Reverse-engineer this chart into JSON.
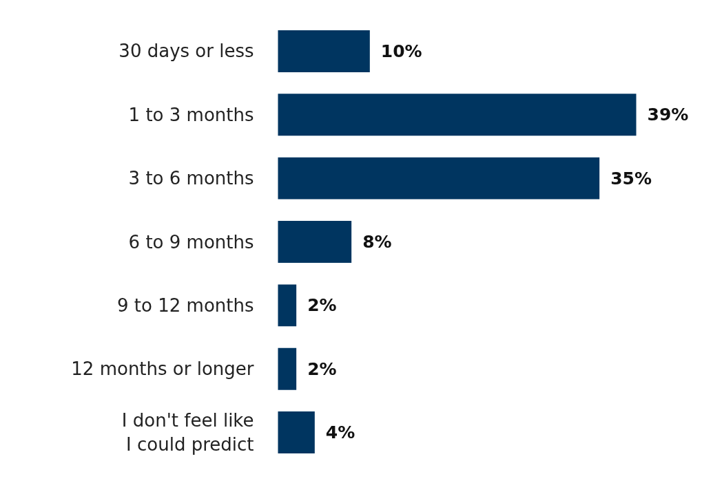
{
  "chart_data": {
    "type": "bar",
    "orientation": "horizontal",
    "categories": [
      "30 days or less",
      "1 to 3 months",
      "3 to 6 months",
      "6 to 9 months",
      "9 to 12 months",
      "12 months or longer",
      "I don't feel like\nI could predict"
    ],
    "values": [
      10,
      39,
      35,
      8,
      2,
      2,
      4
    ],
    "value_labels": [
      "10%",
      "39%",
      "35%",
      "8%",
      "2%",
      "2%",
      "4%"
    ],
    "color": "#003560",
    "grid": false
  }
}
